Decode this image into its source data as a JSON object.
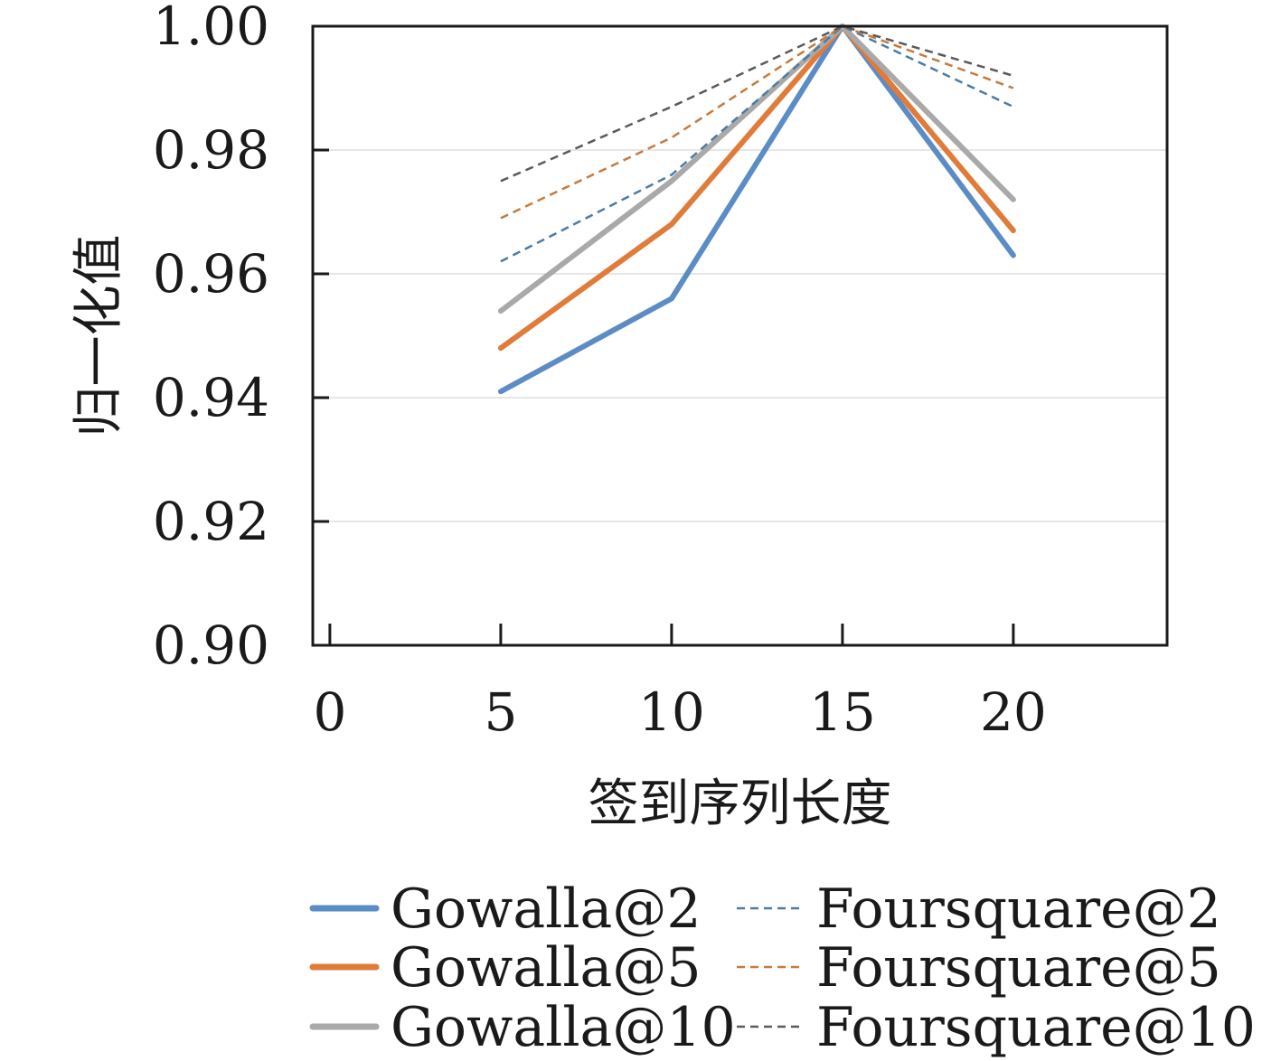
{
  "chart_data": {
    "type": "line",
    "xlabel": "签到序列长度",
    "ylabel": "归一化值",
    "xlim": [
      -0.5,
      24.5
    ],
    "ylim": [
      0.9,
      1.0
    ],
    "x_ticks": [
      "0",
      "5",
      "10",
      "15",
      "20"
    ],
    "y_ticks": [
      "0.90",
      "0.92",
      "0.94",
      "0.96",
      "0.98",
      "1.00"
    ],
    "grid": "horizontal",
    "legend_position": "bottom",
    "x": [
      5,
      10,
      15,
      20
    ],
    "series": [
      {
        "name": "Gowalla@2",
        "values": [
          0.941,
          0.956,
          1.0,
          0.963
        ],
        "color": "#5b8cc5",
        "style": "solid"
      },
      {
        "name": "Gowalla@5",
        "values": [
          0.948,
          0.968,
          1.0,
          0.967
        ],
        "color": "#e07b39",
        "style": "solid"
      },
      {
        "name": "Gowalla@10",
        "values": [
          0.954,
          0.975,
          1.0,
          0.972
        ],
        "color": "#a9a9a9",
        "style": "solid"
      },
      {
        "name": "Foursquare@2",
        "values": [
          0.962,
          0.976,
          1.0,
          0.987
        ],
        "color": "#4a7ba8",
        "style": "dashed"
      },
      {
        "name": "Foursquare@5",
        "values": [
          0.969,
          0.982,
          1.0,
          0.99
        ],
        "color": "#c87a3c",
        "style": "dashed"
      },
      {
        "name": "Foursquare@10",
        "values": [
          0.975,
          0.987,
          1.0,
          0.992
        ],
        "color": "#5a5a5a",
        "style": "dashed"
      }
    ]
  }
}
